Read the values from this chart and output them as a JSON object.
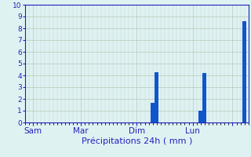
{
  "title": "",
  "xlabel": "Précipitations 24h ( mm )",
  "ylabel": "",
  "background_color": "#dff2f2",
  "bar_color": "#1055cc",
  "grid_color": "#b8c8b8",
  "text_color": "#2222bb",
  "ylim": [
    0,
    10
  ],
  "yticks": [
    0,
    1,
    2,
    3,
    4,
    5,
    6,
    7,
    8,
    9,
    10
  ],
  "total_bars": 56,
  "bar_positions": [
    32,
    33,
    44,
    45,
    55
  ],
  "bar_values": [
    1.7,
    4.3,
    1.0,
    4.2,
    8.6
  ],
  "xtick_positions": [
    2,
    14,
    28,
    42,
    52
  ],
  "xtick_labels": [
    "Sam",
    "Mar",
    "Dim",
    "Lun",
    ""
  ]
}
